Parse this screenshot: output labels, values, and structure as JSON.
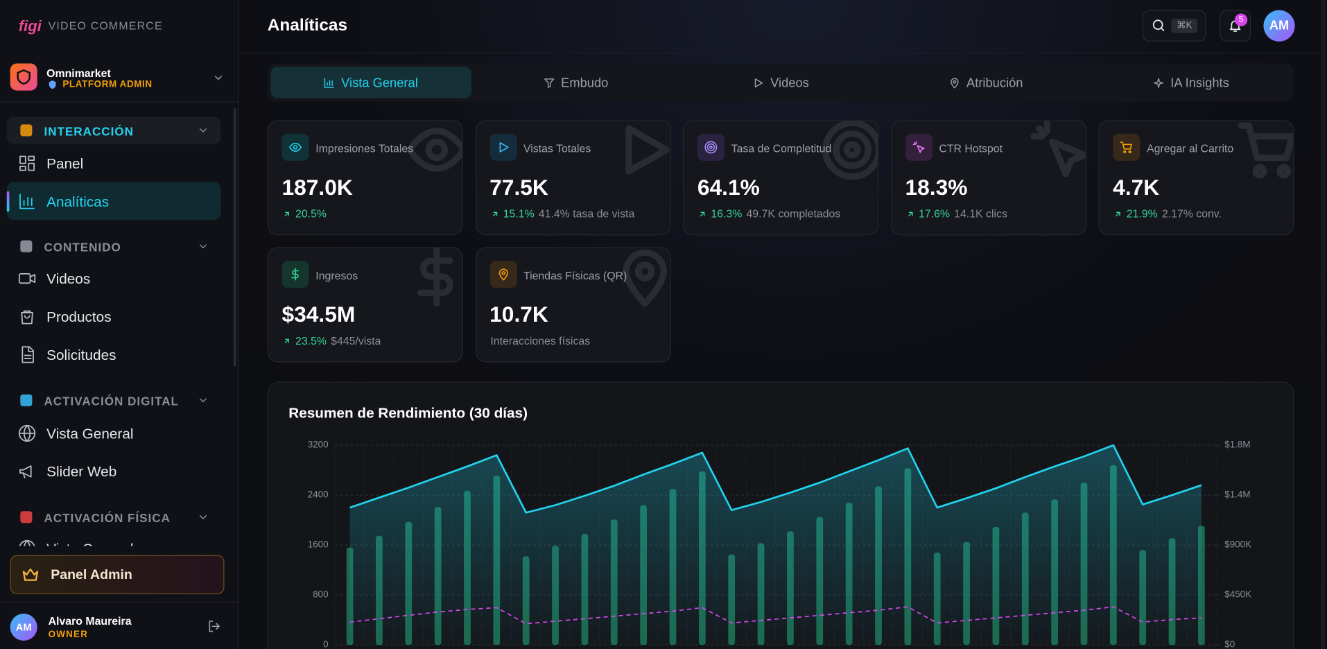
{
  "sidebar": {
    "brand": "figi",
    "brand_subtitle": "VIDEO COMMERCE",
    "workspace": {
      "name": "Omnimarket",
      "role": "PLATFORM ADMIN"
    },
    "sections": [
      {
        "title": "INTERACCIÓN",
        "items": [
          "Panel",
          "Analíticas"
        ]
      },
      {
        "title": "CONTENIDO",
        "items": [
          "Videos",
          "Productos",
          "Solicitudes"
        ]
      },
      {
        "title": "ACTIVACIÓN DIGITAL",
        "items": [
          "Vista General",
          "Slider Web"
        ]
      },
      {
        "title": "ACTIVACIÓN FÍSICA",
        "items": [
          "Vista General"
        ]
      }
    ],
    "admin_button": "Panel Admin",
    "user": {
      "initials": "AM",
      "name": "Alvaro Maureira",
      "role": "OWNER"
    }
  },
  "header": {
    "title": "Analíticas",
    "search_shortcut": "⌘K",
    "notifications": 5,
    "avatar": "AM"
  },
  "tabs": [
    "Vista General",
    "Embudo",
    "Videos",
    "Atribución",
    "IA Insights"
  ],
  "cards": [
    {
      "label": "Impresiones Totales",
      "value": "187.0K",
      "change": "20.5%"
    },
    {
      "label": "Vistas Totales",
      "value": "77.5K",
      "change": "15.1%",
      "detail": "41.4% tasa de vista"
    },
    {
      "label": "Tasa de Completitud",
      "value": "64.1%",
      "change": "16.3%",
      "detail": "49.7K completados"
    },
    {
      "label": "CTR Hotspot",
      "value": "18.3%",
      "change": "17.6%",
      "detail": "14.1K clics"
    },
    {
      "label": "Agregar al Carrito",
      "value": "4.7K",
      "change": "21.9%",
      "detail": "2.17% conv."
    },
    {
      "label": "Ingresos",
      "value": "$34.5M",
      "change": "23.5%",
      "detail": "$445/vista"
    },
    {
      "label": "Tiendas Físicas (QR)",
      "value": "10.7K",
      "detail": "Interacciones físicas"
    }
  ],
  "chart_data": {
    "type": "bar",
    "title": "Resumen de Rendimiento (30 días)",
    "ylim": [
      0,
      3200
    ],
    "yticks": [
      0,
      800,
      1600,
      2400,
      3200
    ],
    "y2lim": [
      0,
      1800000
    ],
    "y2ticks": [
      {
        "value": 0,
        "label": "$0"
      },
      {
        "value": 450000,
        "label": "$450K"
      },
      {
        "value": 900000,
        "label": "$900K"
      },
      {
        "value": 1350000,
        "label": "$1.4M"
      },
      {
        "value": 1800000,
        "label": "$1.8M"
      }
    ],
    "grid": true,
    "series": [
      {
        "type": "bar",
        "color": "#1d7557",
        "values": [
          1560,
          1750,
          1970,
          2210,
          2470,
          2710,
          1420,
          1590,
          1780,
          2010,
          2240,
          2500,
          2780,
          1450,
          1630,
          1820,
          2050,
          2280,
          2540,
          2830,
          1480,
          1650,
          1890,
          2120,
          2330,
          2600,
          2880,
          1520,
          1710,
          1910
        ]
      },
      {
        "type": "line",
        "color": "#22d3ee",
        "values": [
          2200,
          2360,
          2520,
          2690,
          2860,
          3040,
          2120,
          2240,
          2390,
          2550,
          2730,
          2900,
          3080,
          2160,
          2290,
          2440,
          2600,
          2780,
          2960,
          3150,
          2200,
          2350,
          2510,
          2690,
          2860,
          3020,
          3200,
          2250,
          2400,
          2560
        ]
      },
      {
        "type": "line",
        "color": "#d946ef",
        "dashed": true,
        "axis": "y2",
        "values": [
          206000,
          236000,
          267000,
          297000,
          320000,
          336000,
          191000,
          214000,
          236000,
          259000,
          282000,
          305000,
          336000,
          198000,
          221000,
          244000,
          267000,
          290000,
          313000,
          343000,
          198000,
          221000,
          244000,
          267000,
          290000,
          313000,
          343000,
          206000,
          229000,
          244000
        ]
      }
    ]
  }
}
